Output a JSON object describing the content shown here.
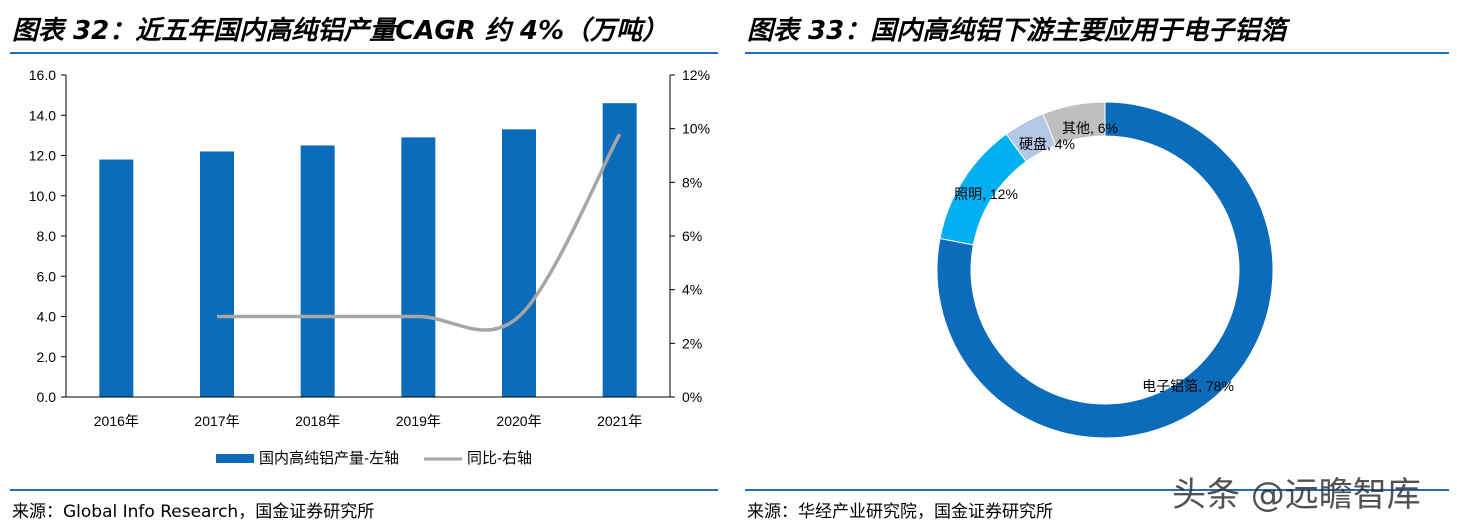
{
  "panels": {
    "left": {
      "title": "图表 32：近五年国内高纯铝产量CAGR 约 4%（万吨）",
      "source": "来源：Global Info Research，国金证券研究所"
    },
    "right": {
      "title": "图表 33：国内高纯铝下游主要应用于电子铝箔",
      "source": "来源：华经产业研究院，国金证券研究所"
    }
  },
  "watermark": "头条 @远瞻智库",
  "colors": {
    "bar": "#0b6cbb",
    "line": "#a6a6a6",
    "rule": "#1f6fb8",
    "donut": [
      "#0b6cbb",
      "#00b0f0",
      "#b4c7e7",
      "#bfbfbf"
    ]
  },
  "chart_data": [
    {
      "type": "bar",
      "title": "近五年国内高纯铝产量CAGR 约 4%（万吨）",
      "categories": [
        "2016年",
        "2017年",
        "2018年",
        "2019年",
        "2020年",
        "2021年"
      ],
      "series": [
        {
          "name": "国内高纯铝产量-左轴",
          "kind": "bar",
          "axis": "left",
          "values": [
            11.8,
            12.2,
            12.5,
            12.9,
            13.3,
            14.6
          ]
        },
        {
          "name": "同比-右轴",
          "kind": "line",
          "axis": "right",
          "values": [
            null,
            3.0,
            3.0,
            3.0,
            3.0,
            9.8
          ]
        }
      ],
      "y_left": {
        "min": 0,
        "max": 16,
        "step": 2,
        "ticks": [
          "0.0",
          "2.0",
          "4.0",
          "6.0",
          "8.0",
          "10.0",
          "12.0",
          "14.0",
          "16.0"
        ]
      },
      "y_right": {
        "min": 0,
        "max": 12,
        "step": 2,
        "ticks": [
          "0%",
          "2%",
          "4%",
          "6%",
          "8%",
          "10%",
          "12%"
        ]
      },
      "legend": [
        "国内高纯铝产量-左轴",
        "同比-右轴"
      ],
      "legend_position": "bottom"
    },
    {
      "type": "pie",
      "style": "donut",
      "title": "国内高纯铝下游主要应用于电子铝箔",
      "slices": [
        {
          "label": "电子铝箔, 78%",
          "name": "电子铝箔",
          "value": 78
        },
        {
          "label": "照明, 12%",
          "name": "照明",
          "value": 12
        },
        {
          "label": "硬盘, 4%",
          "name": "硬盘",
          "value": 4
        },
        {
          "label": "其他, 6%",
          "name": "其他",
          "value": 6
        }
      ]
    }
  ]
}
